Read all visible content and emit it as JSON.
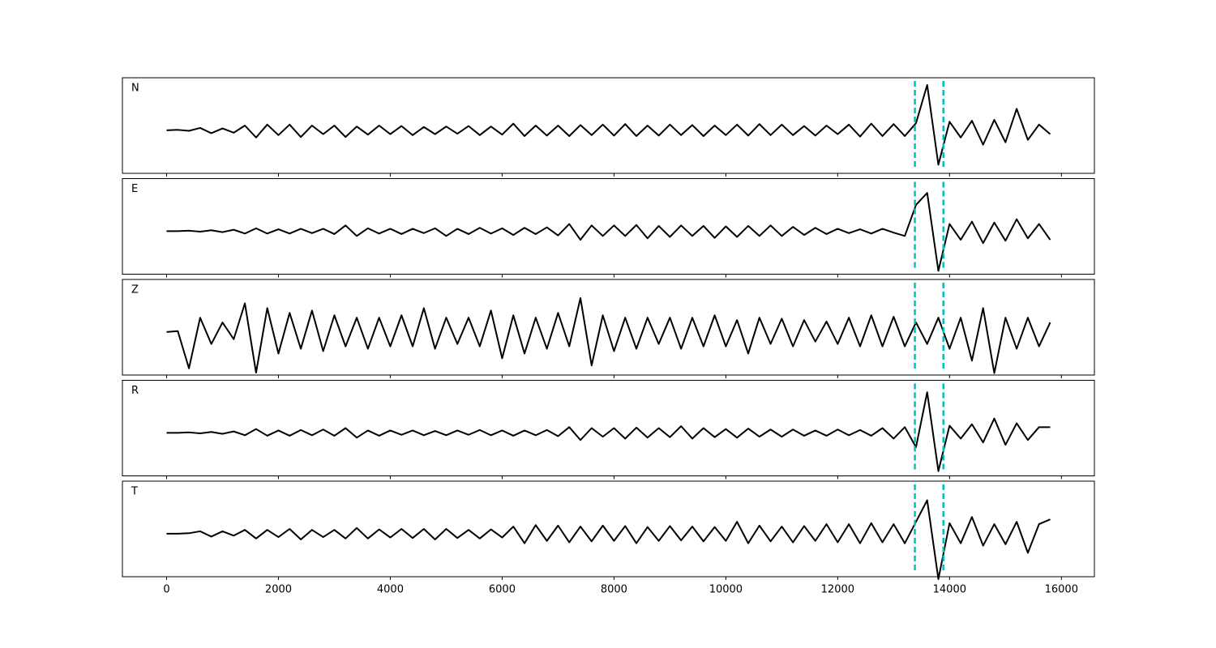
{
  "chart_data": {
    "type": "line",
    "x": [
      0,
      200,
      400,
      600,
      800,
      1000,
      1200,
      1400,
      1600,
      1800,
      2000,
      2200,
      2400,
      2600,
      2800,
      3000,
      3200,
      3400,
      3600,
      3800,
      4000,
      4200,
      4400,
      4600,
      4800,
      5000,
      5200,
      5400,
      5600,
      5800,
      6000,
      6200,
      6400,
      6600,
      6800,
      7000,
      7200,
      7400,
      7600,
      7800,
      8000,
      8200,
      8400,
      8600,
      8800,
      9000,
      9200,
      9400,
      9600,
      9800,
      10000,
      10200,
      10400,
      10600,
      10800,
      11000,
      11200,
      11400,
      11600,
      11800,
      12000,
      12200,
      12400,
      12600,
      12800,
      13000,
      13200,
      13400,
      13600,
      13800,
      14000,
      14200,
      14400,
      14600,
      14800,
      15000,
      15200,
      15400,
      15600,
      15800
    ],
    "xlim": [
      -790,
      16590
    ],
    "xticks": [
      0,
      2000,
      4000,
      6000,
      8000,
      10000,
      12000,
      14000,
      16000
    ],
    "ylim": [
      -0.9,
      1.1
    ],
    "color": "#000000",
    "markers": [
      13380,
      13890
    ],
    "marker_color": "#00bfbf",
    "series": [
      {
        "name": "N",
        "values": [
          0,
          0.01,
          -0.01,
          0.05,
          -0.06,
          0.04,
          -0.05,
          0.1,
          -0.15,
          0.12,
          -0.1,
          0.12,
          -0.14,
          0.1,
          -0.08,
          0.1,
          -0.14,
          0.08,
          -0.09,
          0.1,
          -0.08,
          0.09,
          -0.1,
          0.07,
          -0.08,
          0.08,
          -0.07,
          0.09,
          -0.1,
          0.08,
          -0.09,
          0.14,
          -0.12,
          0.1,
          -0.11,
          0.1,
          -0.12,
          0.11,
          -0.1,
          0.12,
          -0.11,
          0.13,
          -0.12,
          0.1,
          -0.11,
          0.12,
          -0.1,
          0.11,
          -0.12,
          0.1,
          -0.1,
          0.12,
          -0.11,
          0.13,
          -0.1,
          0.12,
          -0.1,
          0.09,
          -0.11,
          0.1,
          -0.08,
          0.12,
          -0.13,
          0.14,
          -0.12,
          0.13,
          -0.12,
          0.15,
          0.95,
          -0.72,
          0.18,
          -0.15,
          0.2,
          -0.3,
          0.22,
          -0.25,
          0.45,
          -0.2,
          0.12,
          -0.08
        ]
      },
      {
        "name": "E",
        "values": [
          0,
          0,
          0.01,
          -0.01,
          0.02,
          -0.02,
          0.03,
          -0.05,
          0.06,
          -0.05,
          0.04,
          -0.05,
          0.05,
          -0.04,
          0.05,
          -0.06,
          0.12,
          -0.1,
          0.06,
          -0.05,
          0.05,
          -0.06,
          0.05,
          -0.04,
          0.06,
          -0.1,
          0.05,
          -0.06,
          0.07,
          -0.05,
          0.06,
          -0.08,
          0.07,
          -0.06,
          0.08,
          -0.09,
          0.15,
          -0.18,
          0.12,
          -0.1,
          0.12,
          -0.1,
          0.13,
          -0.15,
          0.11,
          -0.12,
          0.12,
          -0.1,
          0.11,
          -0.14,
          0.1,
          -0.12,
          0.11,
          -0.1,
          0.12,
          -0.1,
          0.09,
          -0.08,
          0.07,
          -0.06,
          0.05,
          -0.04,
          0.04,
          -0.05,
          0.05,
          -0.03,
          -0.1,
          0.55,
          0.8,
          -0.83,
          0.15,
          -0.18,
          0.2,
          -0.25,
          0.18,
          -0.2,
          0.25,
          -0.15,
          0.15,
          -0.18
        ]
      },
      {
        "name": "Z",
        "values": [
          0,
          0.02,
          -0.76,
          0.3,
          -0.25,
          0.2,
          -0.15,
          0.6,
          -0.85,
          0.5,
          -0.45,
          0.4,
          -0.35,
          0.45,
          -0.4,
          0.35,
          -0.3,
          0.3,
          -0.35,
          0.3,
          -0.3,
          0.35,
          -0.3,
          0.5,
          -0.35,
          0.3,
          -0.25,
          0.3,
          -0.3,
          0.45,
          -0.55,
          0.35,
          -0.45,
          0.3,
          -0.35,
          0.4,
          -0.3,
          0.71,
          -0.7,
          0.35,
          -0.4,
          0.3,
          -0.35,
          0.3,
          -0.25,
          0.3,
          -0.35,
          0.3,
          -0.3,
          0.35,
          -0.3,
          0.25,
          -0.45,
          0.3,
          -0.25,
          0.28,
          -0.3,
          0.25,
          -0.2,
          0.22,
          -0.25,
          0.3,
          -0.3,
          0.35,
          -0.3,
          0.32,
          -0.3,
          0.2,
          -0.25,
          0.3,
          -0.35,
          0.3,
          -0.6,
          0.5,
          -0.86,
          0.3,
          -0.35,
          0.3,
          -0.3,
          0.2
        ]
      },
      {
        "name": "R",
        "values": [
          0,
          0,
          0.01,
          -0.01,
          0.02,
          -0.02,
          0.03,
          -0.05,
          0.08,
          -0.06,
          0.05,
          -0.06,
          0.06,
          -0.05,
          0.07,
          -0.06,
          0.1,
          -0.1,
          0.05,
          -0.06,
          0.05,
          -0.04,
          0.05,
          -0.05,
          0.04,
          -0.05,
          0.05,
          -0.04,
          0.06,
          -0.05,
          0.05,
          -0.06,
          0.05,
          -0.05,
          0.06,
          -0.07,
          0.12,
          -0.15,
          0.1,
          -0.08,
          0.1,
          -0.12,
          0.11,
          -0.1,
          0.1,
          -0.09,
          0.14,
          -0.12,
          0.1,
          -0.09,
          0.08,
          -0.1,
          0.09,
          -0.08,
          0.07,
          -0.08,
          0.07,
          -0.06,
          0.05,
          -0.06,
          0.07,
          -0.05,
          0.06,
          -0.06,
          0.1,
          -0.12,
          0.12,
          -0.3,
          0.85,
          -0.8,
          0.15,
          -0.12,
          0.18,
          -0.2,
          0.3,
          -0.25,
          0.2,
          -0.15,
          0.12,
          0.12
        ]
      },
      {
        "name": "T",
        "values": [
          0,
          0,
          0.01,
          0.05,
          -0.06,
          0.05,
          -0.04,
          0.08,
          -0.1,
          0.08,
          -0.07,
          0.1,
          -0.12,
          0.08,
          -0.07,
          0.08,
          -0.1,
          0.12,
          -0.1,
          0.09,
          -0.08,
          0.1,
          -0.09,
          0.1,
          -0.12,
          0.1,
          -0.09,
          0.08,
          -0.1,
          0.09,
          -0.08,
          0.15,
          -0.2,
          0.18,
          -0.15,
          0.17,
          -0.18,
          0.15,
          -0.16,
          0.17,
          -0.15,
          0.16,
          -0.2,
          0.14,
          -0.15,
          0.16,
          -0.14,
          0.15,
          -0.16,
          0.14,
          -0.15,
          0.25,
          -0.2,
          0.17,
          -0.16,
          0.15,
          -0.18,
          0.16,
          -0.15,
          0.2,
          -0.18,
          0.2,
          -0.2,
          0.22,
          -0.18,
          0.2,
          -0.2,
          0.25,
          0.7,
          -0.95,
          0.22,
          -0.2,
          0.35,
          -0.25,
          0.2,
          -0.22,
          0.25,
          -0.4,
          0.2,
          0.3
        ]
      }
    ]
  }
}
